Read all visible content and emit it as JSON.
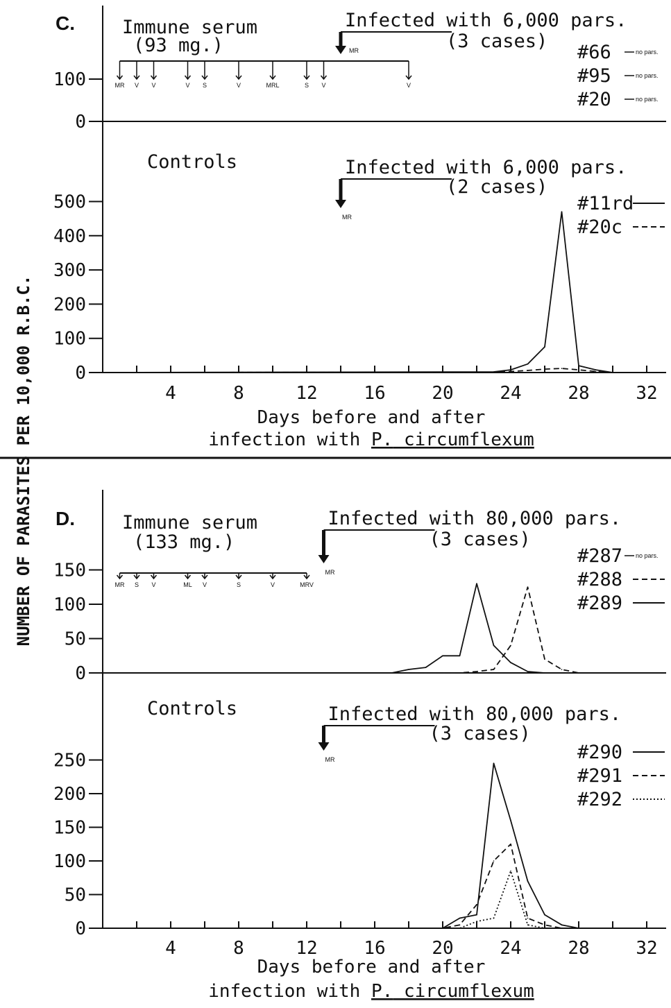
{
  "y_axis_label": "NUMBER OF PARASITES PER 10,000 R.B.C.",
  "chart_data": [
    {
      "panel": "C.",
      "type": "line",
      "xlabel_line1": "Days before and after",
      "xlabel_prefix": "infection with ",
      "xlabel_genus": "P.",
      "xlabel_species": "circumflexum",
      "x_ticks": [
        4,
        8,
        12,
        16,
        20,
        24,
        28,
        32
      ],
      "xlim": [
        0,
        34
      ],
      "subplots": [
        {
          "id": "c-immune",
          "title": "Immune serum",
          "dose": "(93 mg.)",
          "infection": "Infected with 6,000 pars.",
          "cases": "(3 cases)",
          "infection_day": 14,
          "infection_marker": "MR",
          "y_ticks": [
            0,
            100
          ],
          "ylim": [
            0,
            120
          ],
          "injections": [
            {
              "day": 1,
              "label": "MR"
            },
            {
              "day": 2,
              "label": "V"
            },
            {
              "day": 3,
              "label": "V"
            },
            {
              "day": 5,
              "label": "V"
            },
            {
              "day": 6,
              "label": "S"
            },
            {
              "day": 8,
              "label": "V"
            },
            {
              "day": 10,
              "label": "MRL"
            },
            {
              "day": 12,
              "label": "S"
            },
            {
              "day": 13,
              "label": "V"
            },
            {
              "day": 18,
              "label": "V"
            }
          ],
          "series": [
            {
              "name": "#66",
              "style": "solid",
              "note": "no pars.",
              "x": [],
              "y": []
            },
            {
              "name": "#95",
              "style": "solid",
              "note": "no pars.",
              "x": [],
              "y": []
            },
            {
              "name": "#20",
              "style": "solid",
              "note": "no pars.",
              "x": [],
              "y": []
            }
          ]
        },
        {
          "id": "c-controls",
          "title": "Controls",
          "infection": "Infected with 6,000 pars.",
          "cases": "(2 cases)",
          "infection_day": 14,
          "infection_marker": "MR",
          "y_ticks": [
            0,
            100,
            200,
            300,
            400,
            500
          ],
          "ylim": [
            0,
            520
          ],
          "series": [
            {
              "name": "#11rd",
              "style": "solid",
              "x": [
                0,
                23,
                24,
                25,
                26,
                27,
                28,
                29,
                30
              ],
              "y": [
                0,
                2,
                8,
                25,
                75,
                470,
                20,
                8,
                0
              ]
            },
            {
              "name": "#20c",
              "style": "dashed",
              "x": [
                0,
                23,
                24,
                25,
                26,
                27,
                28,
                29,
                30
              ],
              "y": [
                0,
                1,
                3,
                6,
                10,
                12,
                8,
                3,
                0
              ]
            }
          ]
        }
      ]
    },
    {
      "panel": "D.",
      "type": "line",
      "xlabel_line1": "Days before and after",
      "xlabel_prefix": "infection with ",
      "xlabel_genus": "P.",
      "xlabel_species": "circumflexum",
      "x_ticks": [
        4,
        8,
        12,
        16,
        20,
        24,
        28,
        32
      ],
      "xlim": [
        0,
        34
      ],
      "subplots": [
        {
          "id": "d-immune",
          "title": "Immune serum",
          "dose": "(133 mg.)",
          "infection": "Infected with 80,000 pars.",
          "cases": "(3 cases)",
          "infection_day": 13,
          "infection_marker": "MR",
          "y_ticks": [
            0,
            50,
            100,
            150
          ],
          "ylim": [
            0,
            175
          ],
          "injections": [
            {
              "day": 1,
              "label": "MR"
            },
            {
              "day": 2,
              "label": "S"
            },
            {
              "day": 3,
              "label": "V"
            },
            {
              "day": 5,
              "label": "ML"
            },
            {
              "day": 6,
              "label": "V"
            },
            {
              "day": 8,
              "label": "S"
            },
            {
              "day": 10,
              "label": "V"
            },
            {
              "day": 12,
              "label": "MRV"
            }
          ],
          "series": [
            {
              "name": "#287",
              "style": "solid",
              "note": "no pars.",
              "x": [],
              "y": []
            },
            {
              "name": "#288",
              "style": "dashed",
              "x": [
                0,
                20,
                21,
                22,
                23,
                24,
                25,
                26,
                27,
                28
              ],
              "y": [
                0,
                0,
                0,
                2,
                5,
                40,
                125,
                20,
                5,
                0
              ]
            },
            {
              "name": "#289",
              "style": "solid",
              "x": [
                0,
                17,
                18,
                19,
                20,
                21,
                22,
                23,
                24,
                25,
                26
              ],
              "y": [
                0,
                0,
                5,
                8,
                25,
                25,
                130,
                40,
                15,
                2,
                0
              ]
            }
          ]
        },
        {
          "id": "d-controls",
          "title": "Controls",
          "infection": "Infected with 80,000 pars.",
          "cases": "(3 cases)",
          "infection_day": 13,
          "infection_marker": "MR",
          "y_ticks": [
            0,
            50,
            100,
            150,
            200,
            250
          ],
          "ylim": [
            0,
            270
          ],
          "series": [
            {
              "name": "#290",
              "style": "solid",
              "x": [
                0,
                20,
                21,
                22,
                23,
                24,
                25,
                26,
                27,
                28
              ],
              "y": [
                0,
                0,
                15,
                20,
                245,
                160,
                70,
                20,
                5,
                0
              ]
            },
            {
              "name": "#291",
              "style": "dashed",
              "x": [
                0,
                20,
                21,
                22,
                23,
                24,
                25,
                26,
                27
              ],
              "y": [
                0,
                0,
                5,
                35,
                100,
                125,
                15,
                5,
                0
              ]
            },
            {
              "name": "#292",
              "style": "dotted",
              "x": [
                0,
                21,
                22,
                23,
                24,
                25,
                26
              ],
              "y": [
                0,
                0,
                10,
                15,
                85,
                5,
                0
              ]
            }
          ]
        }
      ]
    }
  ]
}
